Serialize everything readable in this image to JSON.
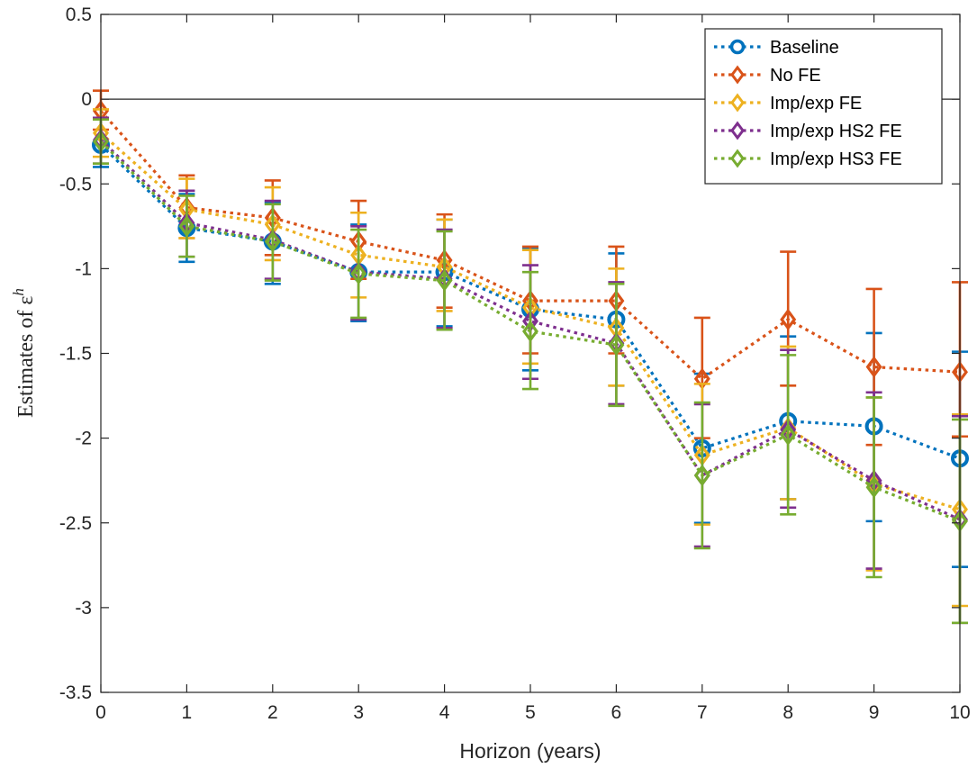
{
  "chart_data": {
    "type": "line",
    "xlabel": "Horizon (years)",
    "ylabel": "Estimates of ε",
    "ylabel_superscript": "h",
    "x": [
      0,
      1,
      2,
      3,
      4,
      5,
      6,
      7,
      8,
      9,
      10
    ],
    "xlim": [
      0,
      10
    ],
    "ylim": [
      -3.5,
      0.5
    ],
    "xticks": [
      "0",
      "1",
      "2",
      "3",
      "4",
      "5",
      "6",
      "7",
      "8",
      "9",
      "10"
    ],
    "yticks": [
      "0.5",
      "0",
      "-0.5",
      "-1",
      "-1.5",
      "-2",
      "-2.5",
      "-3",
      "-3.5"
    ],
    "ytick_values": [
      0.5,
      0,
      -0.5,
      -1,
      -1.5,
      -2,
      -2.5,
      -3,
      -3.5
    ],
    "reference_line": 0,
    "grid": false,
    "legend_position": "top-right",
    "series": [
      {
        "name": "Baseline",
        "color": "#0072BD",
        "marker": "circle",
        "values": [
          -0.27,
          -0.76,
          -0.84,
          -1.02,
          -1.02,
          -1.24,
          -1.3,
          -2.06,
          -1.9,
          -1.93,
          -2.12
        ],
        "lower": [
          -0.4,
          -0.96,
          -1.09,
          -1.31,
          -1.34,
          -1.6,
          -1.69,
          -2.5,
          -2.36,
          -2.49,
          -2.76
        ],
        "upper": [
          -0.12,
          -0.56,
          -0.61,
          -0.74,
          -0.71,
          -0.88,
          -0.91,
          -1.62,
          -1.4,
          -1.38,
          -1.49
        ]
      },
      {
        "name": "No FE",
        "color": "#D95319",
        "marker": "diamond",
        "values": [
          -0.07,
          -0.64,
          -0.7,
          -0.84,
          -0.95,
          -1.19,
          -1.19,
          -1.65,
          -1.3,
          -1.58,
          -1.61
        ],
        "lower": [
          -0.18,
          -0.82,
          -0.92,
          -1.06,
          -1.23,
          -1.5,
          -1.5,
          -2.0,
          -1.69,
          -2.04,
          -1.99
        ],
        "upper": [
          0.05,
          -0.45,
          -0.48,
          -0.6,
          -0.68,
          -0.87,
          -0.87,
          -1.29,
          -0.9,
          -1.12,
          -1.08
        ]
      },
      {
        "name": "Imp/exp FE",
        "color": "#EDB120",
        "marker": "diamond",
        "values": [
          -0.2,
          -0.65,
          -0.74,
          -0.92,
          -0.99,
          -1.23,
          -1.35,
          -2.1,
          -1.94,
          -2.27,
          -2.42
        ],
        "lower": [
          -0.34,
          -0.82,
          -0.95,
          -1.17,
          -1.25,
          -1.56,
          -1.69,
          -2.51,
          -2.36,
          -2.78,
          -2.99
        ],
        "upper": [
          -0.06,
          -0.47,
          -0.52,
          -0.67,
          -0.71,
          -0.89,
          -1.0,
          -1.68,
          -1.46,
          -1.76,
          -1.86
        ]
      },
      {
        "name": "Imp/exp HS2 FE",
        "color": "#7E2F8E",
        "marker": "diamond",
        "values": [
          -0.24,
          -0.73,
          -0.83,
          -1.02,
          -1.06,
          -1.31,
          -1.44,
          -2.22,
          -1.95,
          -2.25,
          -2.48
        ],
        "lower": [
          -0.38,
          -0.93,
          -1.06,
          -1.3,
          -1.35,
          -1.65,
          -1.8,
          -2.64,
          -2.41,
          -2.77,
          -3.09
        ],
        "upper": [
          -0.11,
          -0.54,
          -0.6,
          -0.75,
          -0.77,
          -0.98,
          -1.08,
          -1.8,
          -1.48,
          -1.73,
          -1.87
        ]
      },
      {
        "name": "Imp/exp HS3 FE",
        "color": "#77AC30",
        "marker": "diamond",
        "values": [
          -0.25,
          -0.75,
          -0.84,
          -1.03,
          -1.07,
          -1.37,
          -1.45,
          -2.22,
          -1.98,
          -2.29,
          -2.49
        ],
        "lower": [
          -0.38,
          -0.93,
          -1.07,
          -1.29,
          -1.36,
          -1.71,
          -1.81,
          -2.65,
          -2.45,
          -2.82,
          -3.09
        ],
        "upper": [
          -0.12,
          -0.57,
          -0.62,
          -0.77,
          -0.78,
          -1.02,
          -1.09,
          -1.79,
          -1.51,
          -1.76,
          -1.89
        ]
      }
    ]
  }
}
